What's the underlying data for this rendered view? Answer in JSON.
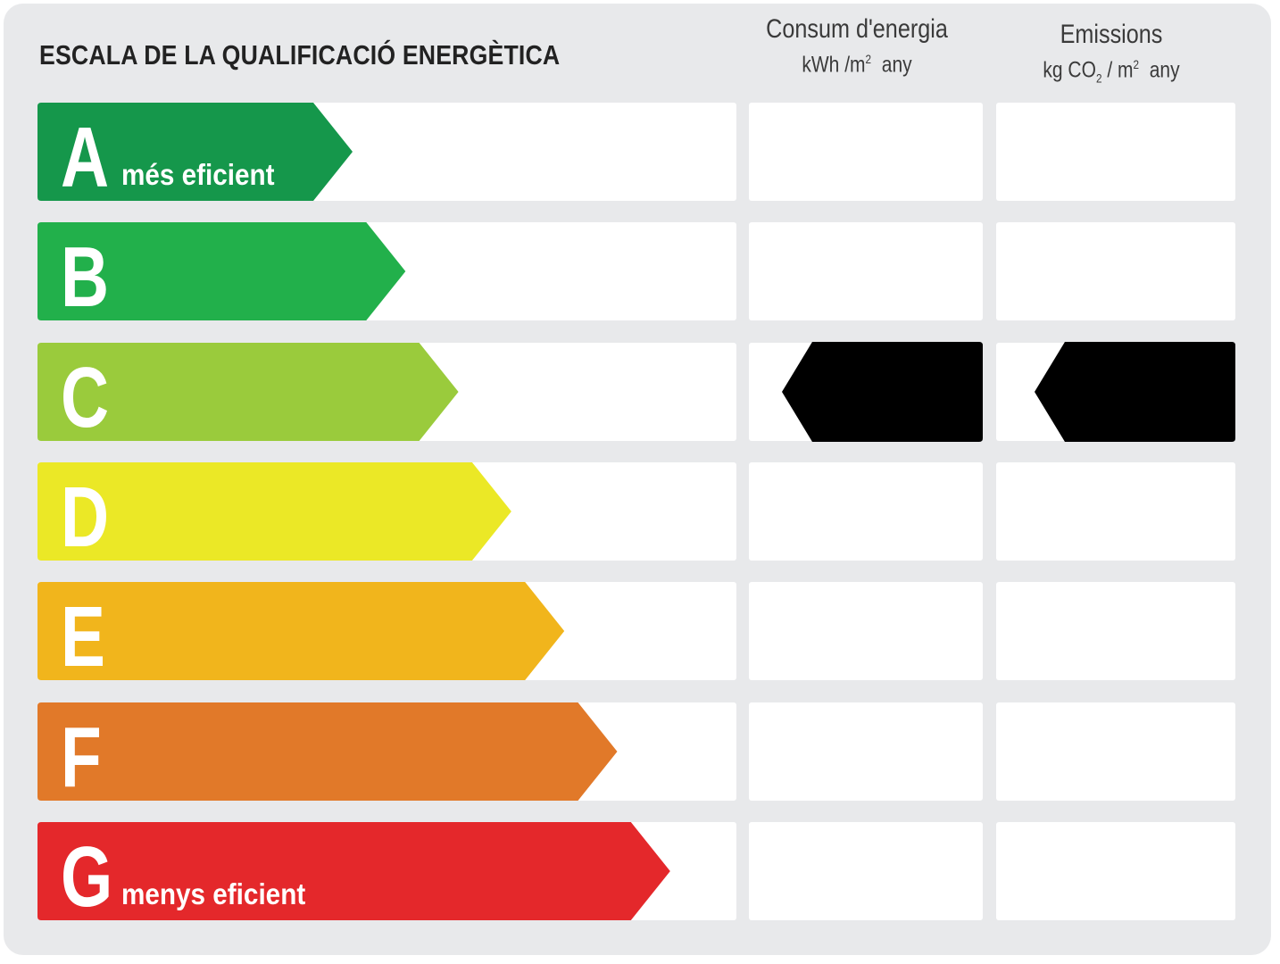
{
  "title": "ESCALA DE LA QUALIFICACIÓ ENERGÈTICA",
  "columns": {
    "energy": {
      "title": "Consum d'energia",
      "unit_prefix": "kWh /m",
      "unit_sup": "2",
      "unit_suffix": "any"
    },
    "emissions": {
      "title": "Emissions",
      "unit_prefix": "kg CO",
      "unit_sub": "2",
      "unit_mid": " / m",
      "unit_sup": "2",
      "unit_suffix": "any"
    }
  },
  "bands": [
    {
      "letter": "A",
      "label": "més eficient",
      "color": "#15974b"
    },
    {
      "letter": "B",
      "label": "",
      "color": "#22b04b"
    },
    {
      "letter": "C",
      "label": "",
      "color": "#9acb3c"
    },
    {
      "letter": "D",
      "label": "",
      "color": "#ebe826"
    },
    {
      "letter": "E",
      "label": "",
      "color": "#f1b51c"
    },
    {
      "letter": "F",
      "label": "",
      "color": "#e17929"
    },
    {
      "letter": "G",
      "label": "menys eficient",
      "color": "#e4282b"
    }
  ],
  "rating": {
    "energy_class": "C",
    "emissions_class": "C",
    "marker_color": "#000000"
  }
}
